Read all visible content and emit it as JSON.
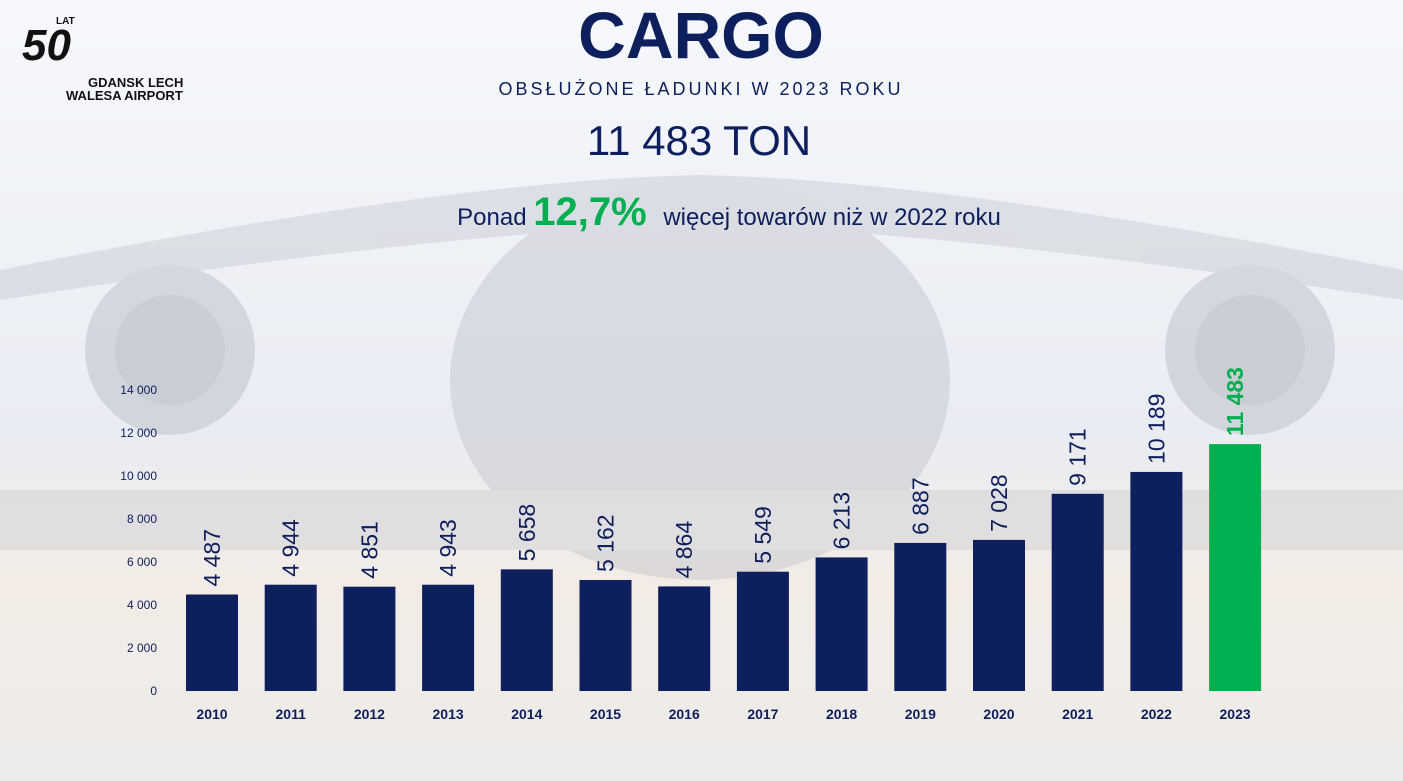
{
  "logo": {
    "number": "50",
    "suffix": "LAT",
    "line1": "GDANSK LECH",
    "line2": "WALESA AIRPORT"
  },
  "chart_data": {
    "type": "bar",
    "title": "CARGO",
    "subtitle": "OBSŁUŻONE ŁADUNKI W 2023 ROKU",
    "headline": "11 483 TON",
    "annotation": {
      "prefix": "Ponad",
      "highlight": "12,7%",
      "suffix": "więcej towarów niż w 2022 roku"
    },
    "categories": [
      "2010",
      "2011",
      "2012",
      "2013",
      "2014",
      "2015",
      "2016",
      "2017",
      "2018",
      "2019",
      "2020",
      "2021",
      "2022",
      "2023"
    ],
    "values": [
      4487,
      4944,
      4851,
      4943,
      5658,
      5162,
      4864,
      5549,
      6213,
      6887,
      7028,
      9171,
      10189,
      11483
    ],
    "value_labels": [
      "4 487",
      "4 944",
      "4 851",
      "4 943",
      "5 658",
      "5 162",
      "4 864",
      "5 549",
      "6 213",
      "6 887",
      "7 028",
      "9 171",
      "10 189",
      "11 483"
    ],
    "colors": [
      "#0d1f5c",
      "#0d1f5c",
      "#0d1f5c",
      "#0d1f5c",
      "#0d1f5c",
      "#0d1f5c",
      "#0d1f5c",
      "#0d1f5c",
      "#0d1f5c",
      "#0d1f5c",
      "#0d1f5c",
      "#0d1f5c",
      "#0d1f5c",
      "#00b050"
    ],
    "ylim": [
      0,
      14000
    ],
    "yticks": [
      0,
      {
        "value": 2000,
        "label": "2 000"
      },
      {
        "value": 4000,
        "label": "4 000"
      },
      {
        "value": 6000,
        "label": "6 000"
      },
      {
        "value": 8000,
        "label": "8 000"
      },
      {
        "value": 10000,
        "label": "10 000"
      },
      {
        "value": 12000,
        "label": "12 000"
      },
      {
        "value": 14000,
        "label": "14 000"
      }
    ],
    "grid": false
  }
}
